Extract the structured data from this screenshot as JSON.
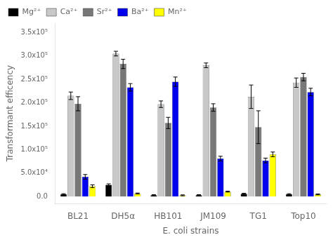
{
  "chart_data": {
    "type": "bar",
    "categories": [
      "BL21",
      "DH5α",
      "HB101",
      "JM109",
      "TG1",
      "Top10"
    ],
    "series": [
      {
        "name": "Mg²⁺",
        "color": "#000000",
        "values": [
          5000,
          25000,
          3000,
          3000,
          6000,
          5000
        ],
        "errors": [
          1000,
          2000,
          1000,
          1000,
          1000,
          1000
        ]
      },
      {
        "name": "Ca²⁺",
        "color": "#c8c8c8",
        "values": [
          215000,
          305000,
          197000,
          280000,
          213000,
          243000
        ],
        "errors": [
          8000,
          5000,
          7000,
          5000,
          25000,
          10000
        ]
      },
      {
        "name": "Sr²⁺",
        "color": "#787878",
        "values": [
          198000,
          283000,
          157000,
          190000,
          148000,
          255000
        ],
        "errors": [
          15000,
          10000,
          12000,
          8000,
          35000,
          8000
        ]
      },
      {
        "name": "Ba²⁺",
        "color": "#0000ee",
        "values": [
          42000,
          233000,
          245000,
          81000,
          77000,
          223000
        ],
        "errors": [
          5000,
          8000,
          10000,
          5000,
          5000,
          8000
        ]
      },
      {
        "name": "Mn²⁺",
        "color": "#ffff00",
        "values": [
          22000,
          6500,
          2500,
          10500,
          90000,
          4500
        ],
        "errors": [
          3000,
          1000,
          1000,
          1000,
          5000,
          1000
        ]
      }
    ],
    "xlabel": "E. coli strains",
    "ylabel": "Transformant efficency",
    "ylim": [
      -15000,
      370000
    ],
    "yticks": [
      {
        "value": 0,
        "label": "0.0"
      },
      {
        "value": 50000,
        "label": "5.0x10⁴"
      },
      {
        "value": 100000,
        "label": "1.0x10⁵"
      },
      {
        "value": 150000,
        "label": "1.5x10⁵"
      },
      {
        "value": 200000,
        "label": "2.0x10⁵"
      },
      {
        "value": 250000,
        "label": "2.5x10⁵"
      },
      {
        "value": 300000,
        "label": "3.0x10⁵"
      },
      {
        "value": 350000,
        "label": "3.5x10⁵"
      }
    ],
    "legend": "upper left",
    "grid": false
  }
}
